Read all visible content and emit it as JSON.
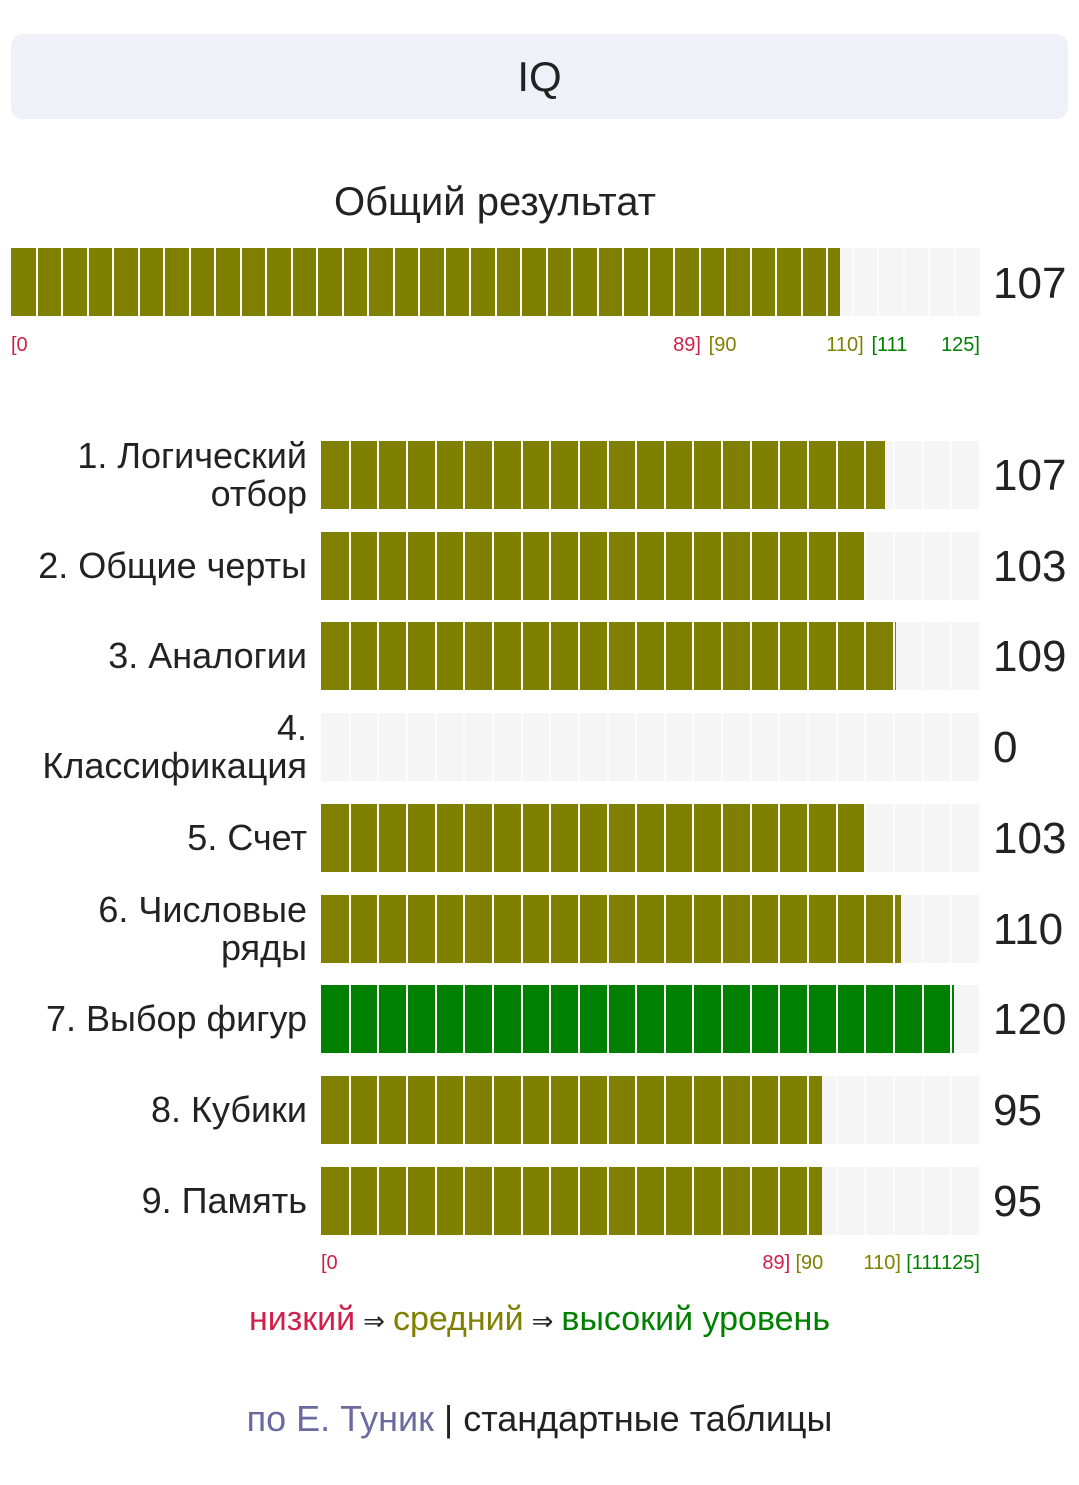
{
  "header": {
    "title": "IQ"
  },
  "overall": {
    "title": "Общий результат"
  },
  "colors": {
    "low": "#d0204a",
    "average": "#808000",
    "high": "#008000",
    "track": "#f5f5f5",
    "author": "#6a6aa0"
  },
  "chart_data": [
    {
      "type": "bar",
      "orientation": "horizontal",
      "title": "Общий результат",
      "categories": [
        "Общий результат"
      ],
      "values": [
        107
      ],
      "xlim": [
        0,
        125
      ],
      "value_labels": [
        "107"
      ],
      "scale_labels": [
        "[0",
        "89]",
        "[90",
        "110]",
        "[111",
        "125]"
      ]
    },
    {
      "type": "bar",
      "orientation": "horizontal",
      "categories": [
        "1. Логический отбор",
        "2. Общие черты",
        "3. Аналогии",
        "4. Классификация",
        "5. Счет",
        "6. Числовые ряды",
        "7. Выбор фигур",
        "8. Кубики",
        "9. Память"
      ],
      "values": [
        107,
        103,
        109,
        0,
        103,
        110,
        120,
        95,
        95
      ],
      "value_labels": [
        "107",
        "103",
        "109",
        "0",
        "103",
        "110",
        "120",
        "95",
        "95"
      ],
      "xlim": [
        0,
        125
      ],
      "scale_labels": [
        "[0",
        "89]",
        "[90",
        "110]",
        "[111",
        "125]"
      ]
    }
  ],
  "legend": {
    "low": "низкий",
    "arrow": "⇒",
    "average": "средний",
    "high": "высокий уровень"
  },
  "footer": {
    "author": "по Е. Туник",
    "separator": " | ",
    "tables": "стандартные таблицы"
  }
}
